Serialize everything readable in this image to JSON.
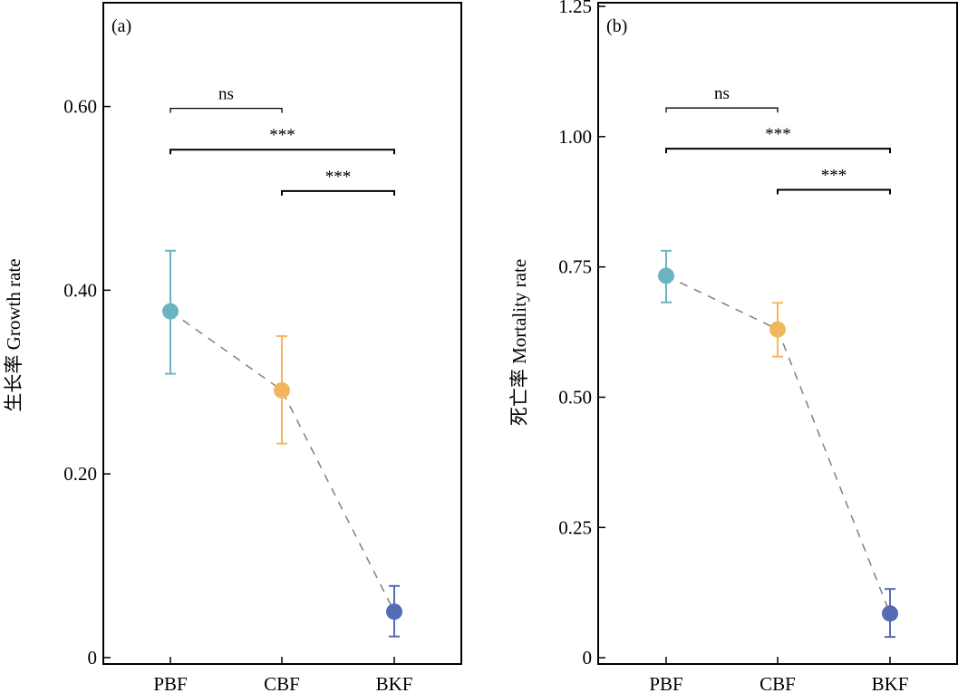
{
  "chart_data": [
    {
      "type": "line",
      "panel_label": "(a)",
      "title": "",
      "xlabel": "",
      "ylabel": "生长率 Growth rate",
      "categories": [
        "PBF",
        "CBF",
        "BKF"
      ],
      "series": [
        {
          "name": "Growth rate",
          "values": [
            0.377,
            0.291,
            0.05
          ],
          "error_upper": [
            0.443,
            0.35,
            0.078
          ],
          "error_lower": [
            0.309,
            0.233,
            0.023
          ],
          "colors": [
            "#6bb5c2",
            "#f2b75e",
            "#566bb5"
          ],
          "line_color": "#808080",
          "line_style": "dashed"
        }
      ],
      "yticks": [
        0,
        0.2,
        0.4,
        0.6
      ],
      "ytick_labels": [
        "0",
        "0.20",
        "0.40",
        "0.60"
      ],
      "ylim": [
        -0.007,
        0.713
      ],
      "grid": false,
      "legend": "none",
      "significance": [
        {
          "from": "PBF",
          "to": "CBF",
          "label": "ns",
          "y": 0.598
        },
        {
          "from": "PBF",
          "to": "BKF",
          "label": "***",
          "y": 0.553
        },
        {
          "from": "CBF",
          "to": "BKF",
          "label": "***",
          "y": 0.508
        }
      ]
    },
    {
      "type": "line",
      "panel_label": "(b)",
      "title": "",
      "xlabel": "",
      "ylabel": "死亡率 Mortality rate",
      "categories": [
        "PBF",
        "CBF",
        "BKF"
      ],
      "series": [
        {
          "name": "Mortality rate",
          "values": [
            0.733,
            0.63,
            0.085
          ],
          "error_upper": [
            0.781,
            0.681,
            0.132
          ],
          "error_lower": [
            0.682,
            0.578,
            0.04
          ],
          "colors": [
            "#6bb5c2",
            "#f2b75e",
            "#566bb5"
          ],
          "line_color": "#808080",
          "line_style": "dashed"
        }
      ],
      "yticks": [
        0,
        0.25,
        0.5,
        0.75,
        1.0,
        1.25
      ],
      "ytick_labels": [
        "0",
        "0.25",
        "0.50",
        "0.75",
        "1.00",
        "1.25"
      ],
      "ylim": [
        -0.012,
        1.257
      ],
      "grid": false,
      "legend": "none",
      "significance": [
        {
          "from": "PBF",
          "to": "CBF",
          "label": "ns",
          "y": 1.055
        },
        {
          "from": "PBF",
          "to": "BKF",
          "label": "***",
          "y": 0.977
        },
        {
          "from": "CBF",
          "to": "BKF",
          "label": "***",
          "y": 0.898
        }
      ]
    }
  ]
}
